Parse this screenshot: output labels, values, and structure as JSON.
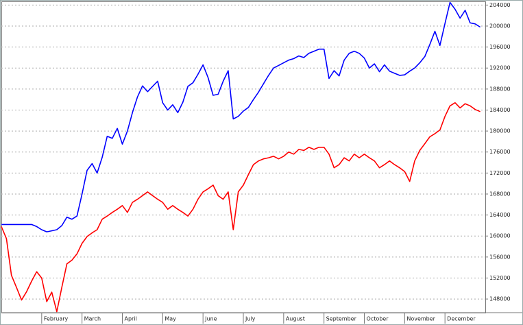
{
  "chart_data": {
    "type": "line",
    "categories": [
      null,
      null,
      null,
      null,
      null,
      null,
      null,
      null,
      "February",
      null,
      null,
      null,
      null,
      null,
      null,
      null,
      "March",
      null,
      null,
      null,
      null,
      null,
      null,
      null,
      "April",
      null,
      null,
      null,
      null,
      null,
      null,
      null,
      "May",
      null,
      null,
      null,
      null,
      null,
      null,
      null,
      "June",
      null,
      null,
      null,
      null,
      null,
      null,
      null,
      "July",
      null,
      null,
      null,
      null,
      null,
      null,
      null,
      "August",
      null,
      null,
      null,
      null,
      null,
      null,
      null,
      "September",
      null,
      null,
      null,
      null,
      null,
      null,
      null,
      "October",
      null,
      null,
      null,
      null,
      null,
      null,
      null,
      "November",
      null,
      null,
      null,
      null,
      null,
      null,
      null,
      "December",
      null,
      null,
      null,
      null,
      null,
      null,
      null
    ],
    "series": [
      {
        "color": "#0000ff",
        "values": [
          162200,
          162200,
          162200,
          162200,
          162200,
          162200,
          162200,
          161800,
          161200,
          160800,
          161000,
          161200,
          162000,
          163600,
          163200,
          163800,
          168000,
          172500,
          173800,
          172000,
          175000,
          179000,
          178600,
          180500,
          177500,
          180000,
          183500,
          186500,
          188600,
          187500,
          188500,
          189500,
          185400,
          184000,
          185000,
          183500,
          185500,
          188500,
          189200,
          190800,
          192600,
          190200,
          186800,
          187000,
          189500,
          191500,
          182300,
          182800,
          183800,
          184500,
          186000,
          187400,
          189000,
          190600,
          192000,
          192500,
          193000,
          193500,
          193800,
          194300,
          194000,
          194800,
          195200,
          195600,
          195600,
          190000,
          191500,
          190500,
          193500,
          194800,
          195200,
          194800,
          193900,
          192000,
          192800,
          191300,
          192600,
          191400,
          191000,
          190600,
          190700,
          191400,
          192000,
          193000,
          194200,
          196500,
          199000,
          196300,
          200500,
          204500,
          203200,
          201500,
          203000,
          200600,
          200400,
          199800
        ]
      },
      {
        "color": "#ff0000",
        "values": [
          161800,
          159500,
          152500,
          150200,
          147800,
          149400,
          151400,
          153200,
          152000,
          147500,
          149300,
          145600,
          150300,
          154700,
          155400,
          156600,
          158600,
          159900,
          160600,
          161200,
          163200,
          163800,
          164500,
          165100,
          165800,
          164500,
          166400,
          167000,
          167700,
          168400,
          167700,
          167000,
          166400,
          165100,
          165800,
          165100,
          164500,
          163800,
          165100,
          167000,
          168400,
          169000,
          169700,
          167700,
          167000,
          168400,
          161200,
          168400,
          169700,
          171700,
          173600,
          174300,
          174700,
          174900,
          175200,
          174700,
          175200,
          176000,
          175600,
          176500,
          176300,
          176900,
          176500,
          176900,
          176900,
          175600,
          173000,
          173600,
          174900,
          174300,
          175600,
          174900,
          175600,
          174900,
          174300,
          173000,
          173600,
          174300,
          173600,
          173000,
          172300,
          170400,
          174300,
          176300,
          177600,
          178900,
          179500,
          180200,
          182800,
          184800,
          185400,
          184400,
          185200,
          184800,
          184100,
          183700
        ]
      }
    ],
    "ylim": [
      145400,
      204700
    ],
    "yticks": [
      148000,
      152000,
      156000,
      160000,
      164000,
      168000,
      172000,
      176000,
      180000,
      184000,
      188000,
      192000,
      196000,
      200000,
      204000
    ],
    "grid": true
  }
}
